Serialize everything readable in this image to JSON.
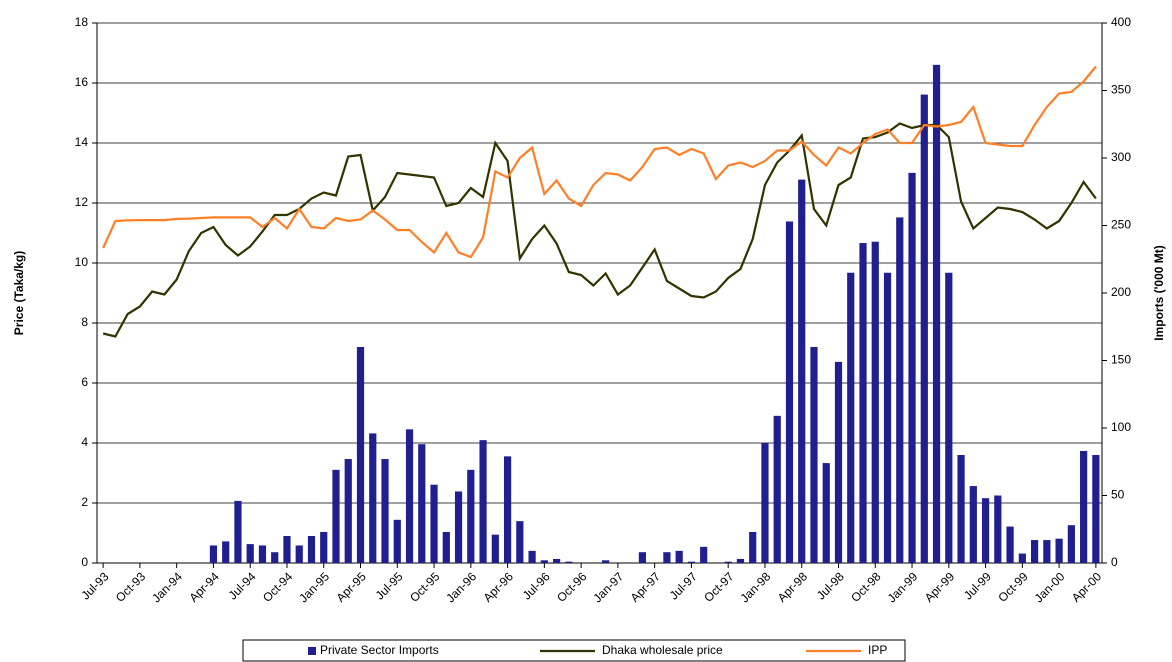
{
  "chart_data": {
    "type": "combo",
    "categories": [
      "Jul-93",
      null,
      null,
      "Oct-93",
      null,
      null,
      "Jan-94",
      null,
      null,
      "Apr-94",
      null,
      null,
      "Jul-94",
      null,
      null,
      "Oct-94",
      null,
      null,
      "Jan-95",
      null,
      null,
      "Apr-95",
      null,
      null,
      "Jul-95",
      null,
      null,
      "Oct-95",
      null,
      null,
      "Jan-96",
      null,
      null,
      "Apr-96",
      null,
      null,
      "Jul-96",
      null,
      null,
      "Oct-96",
      null,
      null,
      "Jan-97",
      null,
      null,
      "Apr-97",
      null,
      null,
      "Jul-97",
      null,
      null,
      "Oct-97",
      null,
      null,
      "Jan-98",
      null,
      null,
      "Apr-98",
      null,
      null,
      "Jul-98",
      null,
      null,
      "Oct-98",
      null,
      null,
      "Jan-99",
      null,
      null,
      "Apr-99",
      null,
      null,
      "Jul-99",
      null,
      null,
      "Oct-99",
      null,
      null,
      "Jan-00",
      null,
      null,
      "Apr-00"
    ],
    "y_label": "Price (Taka/kg)",
    "y2_label": "Imports ('000 Mt)",
    "ylim": [
      0,
      18
    ],
    "yticks": [
      0,
      2,
      4,
      6,
      8,
      10,
      12,
      14,
      16,
      18
    ],
    "y2lim": [
      0,
      400
    ],
    "y2ticks": [
      0,
      50,
      100,
      150,
      200,
      250,
      300,
      350,
      400
    ],
    "grid": true,
    "series": [
      {
        "name": "Private Sector Imports",
        "type": "bar",
        "axis": "y2",
        "color": "#1f1f8f",
        "values": [
          0,
          0,
          0,
          0,
          0,
          0,
          0,
          0,
          0,
          13,
          16,
          46,
          14,
          13,
          8,
          20,
          13,
          20,
          23,
          69,
          77,
          160,
          96,
          77,
          32,
          99,
          88,
          58,
          23,
          53,
          69,
          91,
          21,
          79,
          31,
          9,
          2,
          3,
          1,
          0,
          0,
          2,
          0,
          0,
          8,
          0,
          8,
          9,
          1,
          12,
          0,
          1,
          3,
          23,
          89,
          109,
          253,
          284,
          160,
          74,
          149,
          215,
          237,
          238,
          215,
          256,
          289,
          347,
          369,
          215,
          80,
          57,
          48,
          50,
          27,
          7,
          17,
          17,
          18,
          28,
          83,
          80
        ]
      },
      {
        "name": "Dhaka wholesale price",
        "type": "line",
        "color": "#333300",
        "values": [
          7.65,
          7.55,
          8.3,
          8.55,
          9.05,
          8.95,
          9.45,
          10.4,
          11.0,
          11.2,
          10.6,
          10.25,
          10.55,
          11.05,
          11.6,
          11.6,
          11.8,
          12.15,
          12.35,
          12.25,
          13.55,
          13.6,
          11.75,
          12.2,
          13.0,
          12.95,
          12.9,
          12.85,
          11.9,
          12.0,
          12.5,
          12.2,
          14.0,
          13.4,
          10.15,
          10.8,
          11.25,
          10.65,
          9.7,
          9.6,
          9.25,
          9.65,
          8.95,
          9.25,
          9.85,
          10.45,
          9.4,
          9.15,
          8.9,
          8.85,
          9.05,
          9.5,
          9.8,
          10.8,
          12.6,
          13.35,
          13.75,
          14.25,
          11.8,
          11.25,
          12.6,
          12.85,
          14.15,
          14.2,
          14.35,
          14.65,
          14.5,
          14.6,
          14.6,
          14.2,
          12.05,
          11.15,
          11.5,
          11.85,
          11.8,
          11.7,
          11.45,
          11.15,
          11.4,
          12.0,
          12.7,
          12.15
        ]
      },
      {
        "name": "IPP",
        "type": "line",
        "color": "#ff7f27",
        "values": [
          10.5,
          11.4,
          11.42,
          11.43,
          11.43,
          11.43,
          11.47,
          11.48,
          11.5,
          11.52,
          11.52,
          11.52,
          11.52,
          11.2,
          11.5,
          11.15,
          11.8,
          11.2,
          11.15,
          11.5,
          11.4,
          11.45,
          11.75,
          11.45,
          11.1,
          11.1,
          10.7,
          10.35,
          11.0,
          10.35,
          10.2,
          10.85,
          13.05,
          12.85,
          13.5,
          13.85,
          12.3,
          12.75,
          12.15,
          11.9,
          12.6,
          13.0,
          12.95,
          12.75,
          13.2,
          13.8,
          13.85,
          13.6,
          13.8,
          13.65,
          12.8,
          13.25,
          13.35,
          13.2,
          13.4,
          13.75,
          13.75,
          14.05,
          13.6,
          13.25,
          13.85,
          13.65,
          14.0,
          14.3,
          14.45,
          14.0,
          14.0,
          14.6,
          14.55,
          14.6,
          14.7,
          15.2,
          14.0,
          13.95,
          13.9,
          13.9,
          14.6,
          15.2,
          15.65,
          15.7,
          16.05,
          16.55
        ]
      }
    ]
  }
}
